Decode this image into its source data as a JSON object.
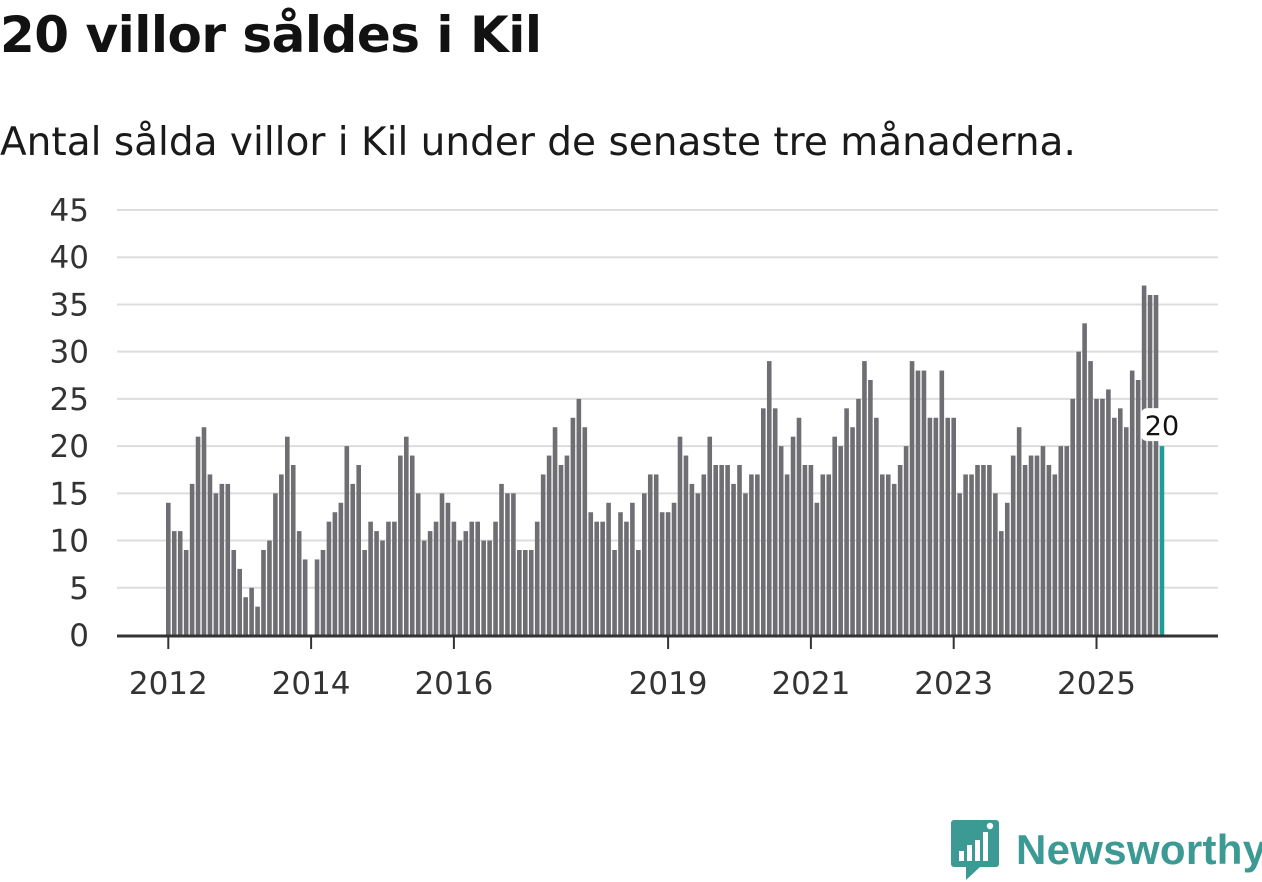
{
  "title": "20 villor såldes i Kil",
  "subtitle": "Antal sålda villor i Kil under de senaste tre månaderna.",
  "brand": {
    "name": "Newsworthy",
    "icon": "newsworthy-logo-icon",
    "color": "#3b9a94"
  },
  "colors": {
    "bar": "#6f6e73",
    "highlight": "#1e9c95",
    "grid": "#dddddd",
    "axis": "#333333"
  },
  "chart_data": {
    "type": "bar",
    "title": "20 villor såldes i Kil",
    "subtitle": "Antal sålda villor i Kil under de senaste tre månaderna.",
    "xlabel": "",
    "ylabel": "",
    "ylim": [
      0,
      45
    ],
    "yticks": [
      0,
      5,
      10,
      15,
      20,
      25,
      30,
      35,
      40,
      45
    ],
    "grid": true,
    "legend": "none",
    "start": "2012-01",
    "frequency": "monthly",
    "xticks": [
      {
        "label": "2012",
        "index": 0
      },
      {
        "label": "2014",
        "index": 24
      },
      {
        "label": "2016",
        "index": 48
      },
      {
        "label": "2019",
        "index": 84
      },
      {
        "label": "2021",
        "index": 108
      },
      {
        "label": "2023",
        "index": 132
      },
      {
        "label": "2025",
        "index": 156
      }
    ],
    "values": [
      14,
      11,
      11,
      9,
      16,
      21,
      22,
      17,
      15,
      16,
      16,
      9,
      7,
      4,
      5,
      3,
      9,
      10,
      15,
      17,
      21,
      18,
      11,
      8,
      0,
      8,
      9,
      12,
      13,
      14,
      20,
      16,
      18,
      9,
      12,
      11,
      10,
      12,
      12,
      19,
      21,
      19,
      15,
      10,
      11,
      12,
      15,
      14,
      12,
      10,
      11,
      12,
      12,
      10,
      10,
      12,
      16,
      15,
      15,
      9,
      9,
      9,
      12,
      17,
      19,
      22,
      18,
      19,
      23,
      25,
      22,
      13,
      12,
      12,
      14,
      9,
      13,
      12,
      14,
      9,
      15,
      17,
      17,
      13,
      13,
      14,
      21,
      19,
      16,
      15,
      17,
      21,
      18,
      18,
      18,
      16,
      18,
      15,
      17,
      17,
      24,
      29,
      24,
      20,
      17,
      21,
      23,
      18,
      18,
      14,
      17,
      17,
      21,
      20,
      24,
      22,
      25,
      29,
      27,
      23,
      17,
      17,
      16,
      18,
      20,
      29,
      28,
      28,
      23,
      23,
      28,
      23,
      23,
      15,
      17,
      17,
      18,
      18,
      18,
      15,
      11,
      14,
      19,
      22,
      18,
      19,
      19,
      20,
      18,
      17,
      20,
      20,
      25,
      30,
      33,
      29,
      25,
      25,
      26,
      23,
      24,
      22,
      28,
      27,
      37,
      36,
      36,
      20
    ],
    "highlight_index": 167,
    "last_value_label": "20"
  }
}
